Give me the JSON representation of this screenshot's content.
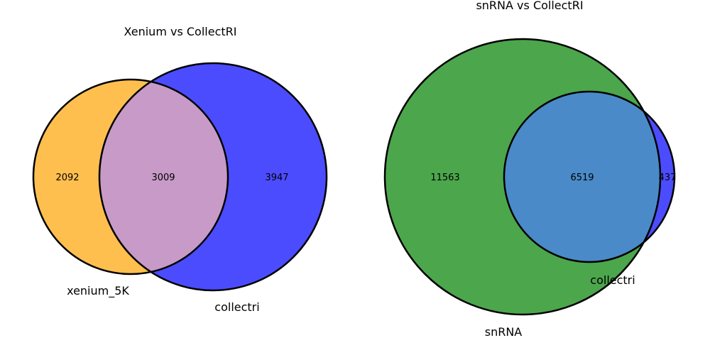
{
  "colors": {
    "xenium_5K": "#ffbf4f",
    "collectri": "#4c4cff",
    "xenium_collectri_overlap": "#c89ac8",
    "snRNA": "#4ca64c",
    "snrna_collectri_overlap": "#4a8ac8",
    "outline": "#000000"
  },
  "venn_left": {
    "title": "Xenium vs CollectRI",
    "set_a_label": "xenium_5K",
    "set_b_label": "collectri",
    "only_a": "2092",
    "both": "3009",
    "only_b": "3947"
  },
  "venn_right": {
    "title": "snRNA vs CollectRI",
    "set_a_label": "snRNA",
    "set_b_label": "collectri",
    "only_a": "11563",
    "both": "6519",
    "only_b": "437"
  }
}
